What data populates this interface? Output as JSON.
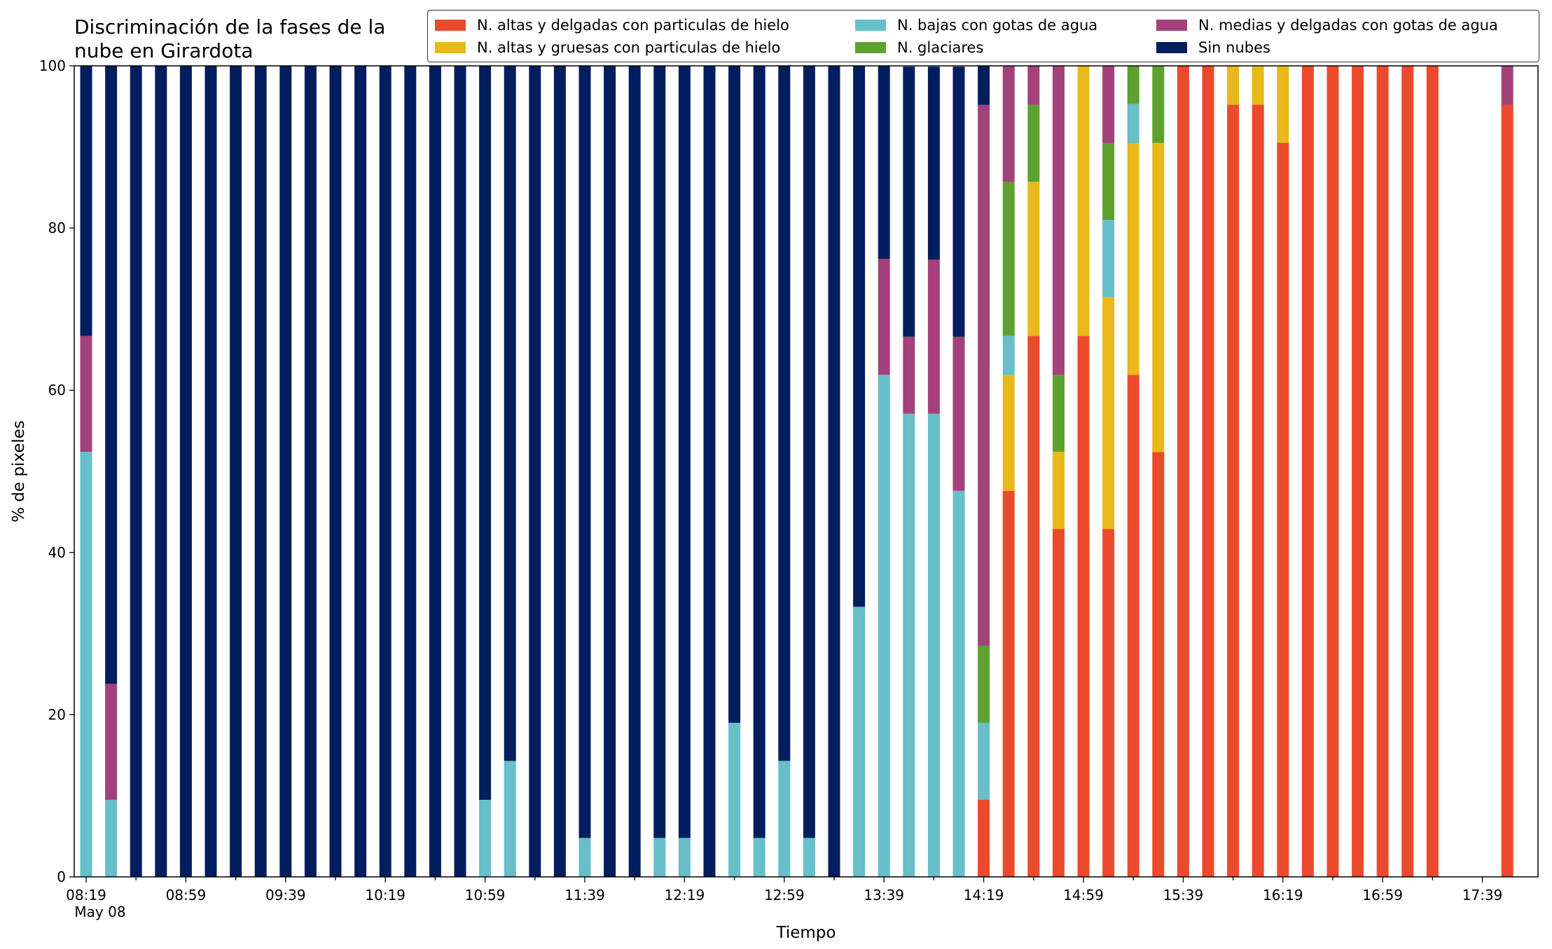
{
  "chart_data": {
    "type": "bar",
    "stacked": true,
    "title_lines": [
      "Discriminación de la fases de la",
      "nube en Girardota"
    ],
    "xlabel": "Tiempo",
    "ylabel": "% de pixeles",
    "ylim": [
      0,
      100
    ],
    "yticks": [
      0,
      20,
      40,
      60,
      80,
      100
    ],
    "xtick_labels": [
      "08:19",
      "08:59",
      "09:39",
      "10:19",
      "10:59",
      "11:39",
      "12:19",
      "12:59",
      "13:39",
      "14:19",
      "14:59",
      "15:39",
      "16:19",
      "16:59",
      "17:39"
    ],
    "xtick_sublabel": "May 08",
    "legend_position": "top-right",
    "grid": false,
    "categories": [
      "08:19",
      "08:29",
      "08:39",
      "08:49",
      "08:59",
      "09:09",
      "09:19",
      "09:29",
      "09:39",
      "09:49",
      "09:59",
      "10:09",
      "10:19",
      "10:29",
      "10:39",
      "10:49",
      "10:59",
      "11:09",
      "11:19",
      "11:29",
      "11:39",
      "11:49",
      "11:59",
      "12:09",
      "12:19",
      "12:29",
      "12:39",
      "12:49",
      "12:59",
      "13:09",
      "13:19",
      "13:29",
      "13:39",
      "13:49",
      "13:59",
      "14:09",
      "14:19",
      "14:29",
      "14:39",
      "14:49",
      "14:59",
      "15:09",
      "15:19",
      "15:29",
      "15:39",
      "15:49",
      "15:59",
      "16:09",
      "16:19",
      "16:29",
      "16:39",
      "16:49",
      "16:59",
      "17:09",
      "17:19",
      "17:29",
      "17:39",
      "17:49"
    ],
    "series": [
      {
        "name": "N. altas y delgadas con particulas de hielo",
        "color": "#ec4a2c",
        "values": [
          0,
          0,
          0,
          0,
          0,
          0,
          0,
          0,
          0,
          0,
          0,
          0,
          0,
          0,
          0,
          0,
          0,
          0,
          0,
          0,
          0,
          0,
          0,
          0,
          0,
          0,
          0,
          0,
          0,
          0,
          0,
          0,
          0,
          0,
          0,
          0,
          9.5,
          47.6,
          66.7,
          42.9,
          66.7,
          42.9,
          61.9,
          52.4,
          100,
          100,
          95.2,
          95.2,
          90.5,
          100,
          100,
          100,
          100,
          100,
          100,
          0,
          0,
          95.2
        ]
      },
      {
        "name": "N. altas y gruesas con particulas de hielo",
        "color": "#e8b919",
        "values": [
          0,
          0,
          0,
          0,
          0,
          0,
          0,
          0,
          0,
          0,
          0,
          0,
          0,
          0,
          0,
          0,
          0,
          0,
          0,
          0,
          0,
          0,
          0,
          0,
          0,
          0,
          0,
          0,
          0,
          0,
          0,
          0,
          0,
          0,
          0,
          0,
          0,
          14.3,
          19,
          9.5,
          33.3,
          28.6,
          28.6,
          38.1,
          0,
          0,
          4.8,
          4.8,
          9.5,
          0,
          0,
          0,
          0,
          0,
          0,
          0,
          0,
          0
        ]
      },
      {
        "name": "N. bajas con gotas de agua",
        "color": "#66bfc9",
        "values": [
          52.4,
          9.5,
          0,
          0,
          0,
          0,
          0,
          0,
          0,
          0,
          0,
          0,
          0,
          0,
          0,
          0,
          9.5,
          14.3,
          0,
          0,
          4.8,
          0,
          0,
          4.8,
          4.8,
          0,
          19,
          4.8,
          14.3,
          4.8,
          0,
          33.3,
          61.9,
          57.1,
          57.1,
          47.6,
          9.5,
          4.8,
          0,
          0,
          0,
          9.5,
          4.8,
          0,
          0,
          0,
          0,
          0,
          0,
          0,
          0,
          0,
          0,
          0,
          0,
          0,
          0,
          0
        ]
      },
      {
        "name": "N. glaciares",
        "color": "#5fa12f",
        "values": [
          0,
          0,
          0,
          0,
          0,
          0,
          0,
          0,
          0,
          0,
          0,
          0,
          0,
          0,
          0,
          0,
          0,
          0,
          0,
          0,
          0,
          0,
          0,
          0,
          0,
          0,
          0,
          0,
          0,
          0,
          0,
          0,
          0,
          0,
          0,
          0,
          9.5,
          19,
          9.5,
          9.5,
          0,
          9.5,
          4.8,
          9.5,
          0,
          0,
          0,
          0,
          0,
          0,
          0,
          0,
          0,
          0,
          0,
          0,
          0,
          0
        ]
      },
      {
        "name": "N. medias y delgadas con gotas de agua",
        "color": "#a3427a",
        "values": [
          14.3,
          14.3,
          0,
          0,
          0,
          0,
          0,
          0,
          0,
          0,
          0,
          0,
          0,
          0,
          0,
          0,
          0,
          0,
          0,
          0,
          0,
          0,
          0,
          0,
          0,
          0,
          0,
          0,
          0,
          0,
          0,
          0,
          14.3,
          9.5,
          19,
          19,
          66.7,
          14.3,
          4.8,
          38.1,
          0,
          9.5,
          0,
          0,
          0,
          0,
          0,
          0,
          0,
          0,
          0,
          0,
          0,
          0,
          0,
          0,
          0,
          4.8
        ]
      },
      {
        "name": "Sin nubes",
        "color": "#031e5e",
        "values": [
          33.3,
          76.2,
          100,
          100,
          100,
          100,
          100,
          100,
          100,
          100,
          100,
          100,
          100,
          100,
          100,
          100,
          90.5,
          85.7,
          100,
          100,
          95.2,
          100,
          100,
          95.2,
          95.2,
          100,
          81,
          95.2,
          85.7,
          95.2,
          100,
          66.7,
          23.8,
          33.3,
          23.8,
          33.3,
          4.8,
          0,
          0,
          0,
          0,
          0,
          0,
          0,
          0,
          0,
          0,
          0,
          0,
          0,
          0,
          0,
          0,
          0,
          0,
          0,
          0,
          0
        ]
      }
    ]
  }
}
